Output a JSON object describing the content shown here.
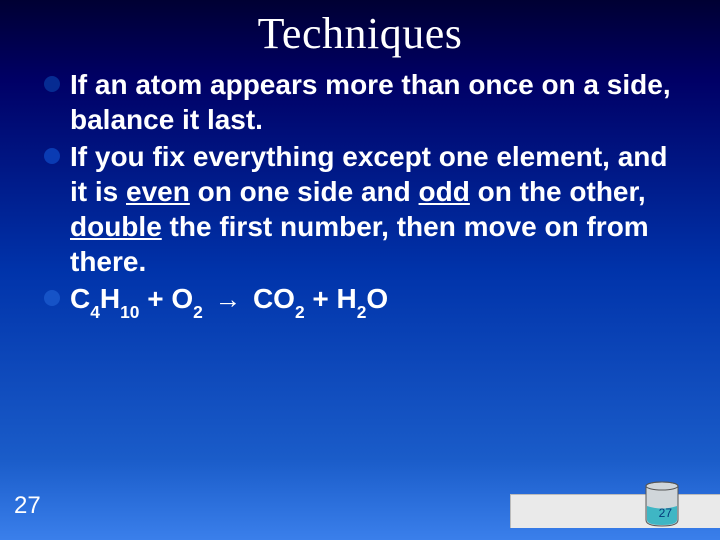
{
  "title": "Techniques",
  "bullets": [
    {
      "dot_color": "#062b92",
      "segments": [
        {
          "text": "If an atom appears more than once on a side, balance it last."
        }
      ]
    },
    {
      "dot_color": "#0a3bb3",
      "segments": [
        {
          "text": "If you fix everything except one element, and it is "
        },
        {
          "text": "even",
          "underline": true
        },
        {
          "text": " on one side and "
        },
        {
          "text": "odd",
          "underline": true
        },
        {
          "text": " on the other, "
        },
        {
          "text": "double",
          "underline": true
        },
        {
          "text": " the first number, then move on from there."
        }
      ]
    },
    {
      "dot_color": "#1653c7",
      "formula": {
        "terms_left": [
          {
            "base": "C",
            "sub": "4"
          },
          {
            "base": "H",
            "sub": "10"
          },
          {
            "plus": true
          },
          {
            "base": "O",
            "sub": "2"
          }
        ],
        "terms_right": [
          {
            "base": "CO",
            "sub": "2"
          },
          {
            "plus": true
          },
          {
            "base": "H",
            "sub": "2"
          },
          {
            "base": "O"
          }
        ]
      }
    }
  ],
  "page_number": "27",
  "beaker": {
    "liquid_color": "#3fb6c4",
    "glass_color": "#d0d6da",
    "outline_color": "#555555"
  },
  "footer_bar_color": "#eaeaea"
}
